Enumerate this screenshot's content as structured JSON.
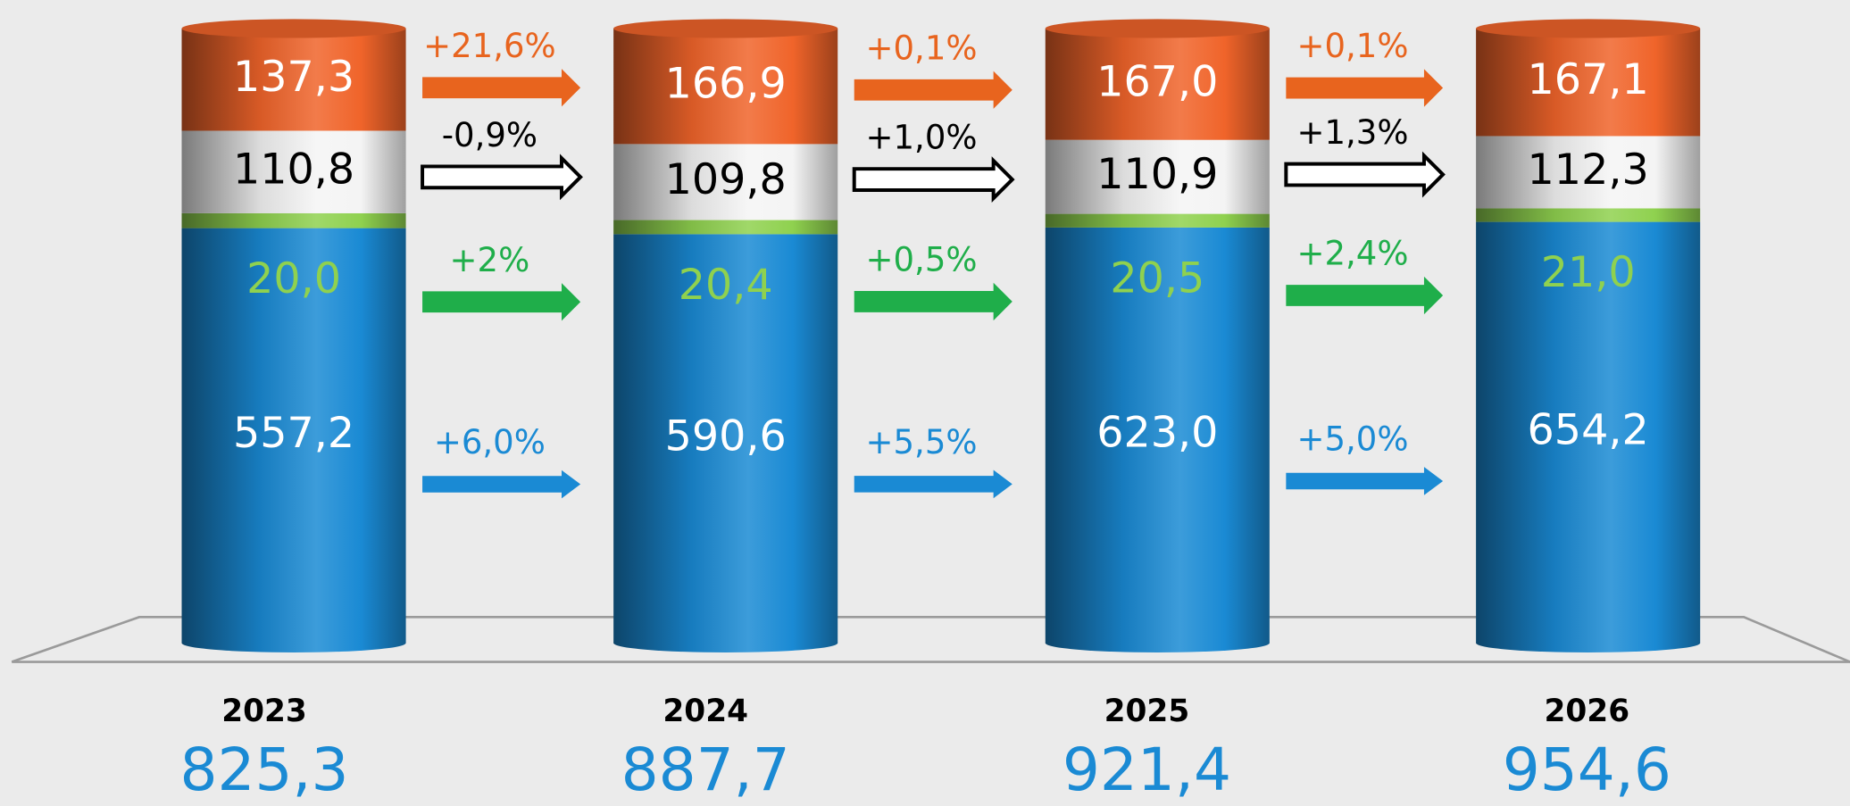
{
  "chart_data": {
    "type": "stacked-cylinder",
    "categories": [
      "2023",
      "2024",
      "2025",
      "2026"
    ],
    "series": [
      {
        "color": "#1a8ad4",
        "label_color": "#ffffff",
        "change_color": "#1a8ad4",
        "values": [
          557.2,
          590.6,
          623.0,
          654.2
        ],
        "value_labels": [
          "557,2",
          "590,6",
          "623,0",
          "654,2"
        ],
        "change_labels": [
          "+6,0%",
          "+5,5%",
          "+5,0%"
        ]
      },
      {
        "color": "#8fd14f",
        "label_color": "#8fd14f",
        "change_color": "#1fae4a",
        "values": [
          20.0,
          20.4,
          20.5,
          21.0
        ],
        "value_labels": [
          "20,0",
          "20,4",
          "20,5",
          "21,0"
        ],
        "change_labels": [
          "+2%",
          "+0,5%",
          "+2,4%"
        ]
      },
      {
        "color": "#f4f4f4",
        "label_color": "#000000",
        "change_color": "#000000",
        "values": [
          110.8,
          109.8,
          110.9,
          112.3
        ],
        "value_labels": [
          "110,8",
          "109,8",
          "110,9",
          "112,3"
        ],
        "change_labels": [
          "-0,9%",
          "+1,0%",
          "+1,3%"
        ]
      },
      {
        "color": "#f0642a",
        "label_color": "#ffffff",
        "change_color": "#e8641e",
        "values": [
          137.3,
          166.9,
          167.0,
          167.1
        ],
        "value_labels": [
          "137,3",
          "166,9",
          "167,0",
          "167,1"
        ],
        "change_labels": [
          "+21,6%",
          "+0,1%",
          "+0,1%"
        ]
      }
    ],
    "totals": {
      "color": "#1a8ad4",
      "values": [
        825.3,
        887.7,
        921.4,
        954.6
      ],
      "value_labels": [
        "825,3",
        "887,7",
        "921,4",
        "954,6"
      ]
    }
  }
}
